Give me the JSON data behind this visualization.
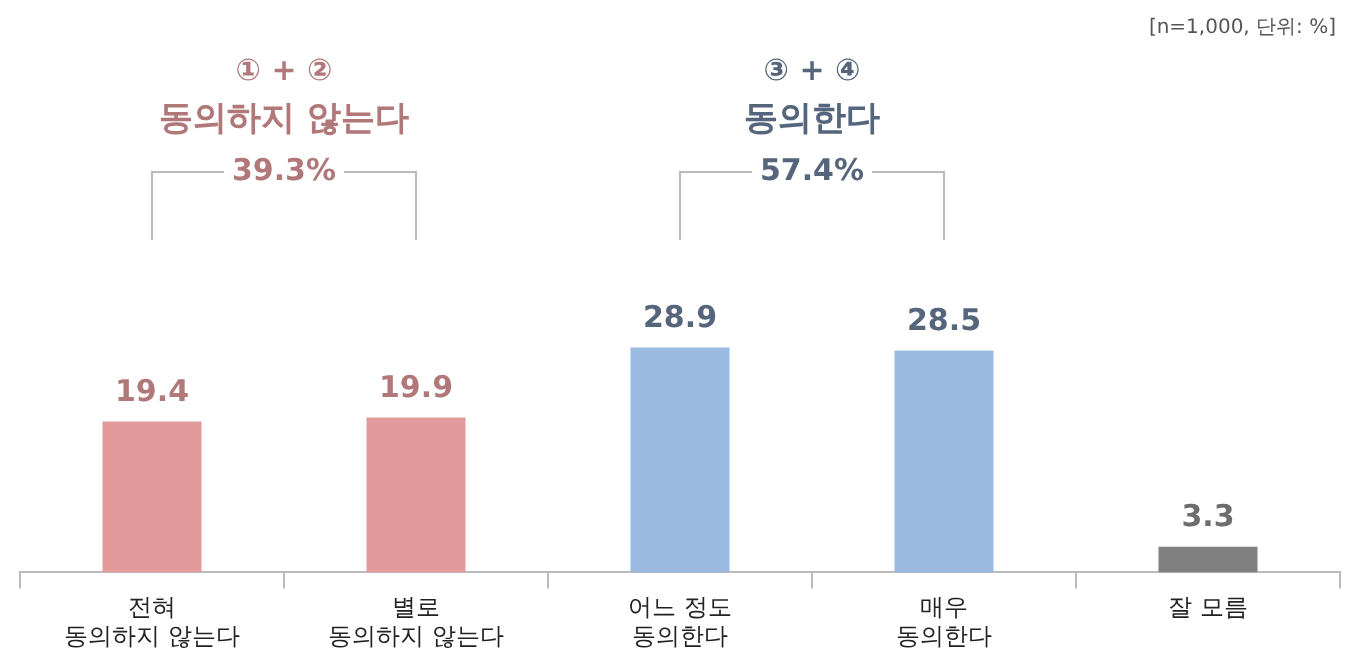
{
  "chart_data": {
    "type": "bar",
    "categories": [
      "전혀\n동의하지 않는다",
      "별로\n동의하지 않는다",
      "어느 정도\n동의한다",
      "매우\n동의한다",
      "잘 모름"
    ],
    "values": [
      19.4,
      19.9,
      28.9,
      28.5,
      3.3
    ],
    "colors": [
      "#e39a9b",
      "#e39a9b",
      "#9bbae2",
      "#9bbae2",
      "#808080"
    ],
    "tick_labels": "x",
    "grid": false,
    "legend": false,
    "data_labels": true,
    "annotations": [
      "[n=1,000, 단위: %]",
      "① + ②",
      "동의하지 않는다",
      "39.3%",
      "③ + ④",
      "동의한다",
      "57.4%"
    ]
  }
}
